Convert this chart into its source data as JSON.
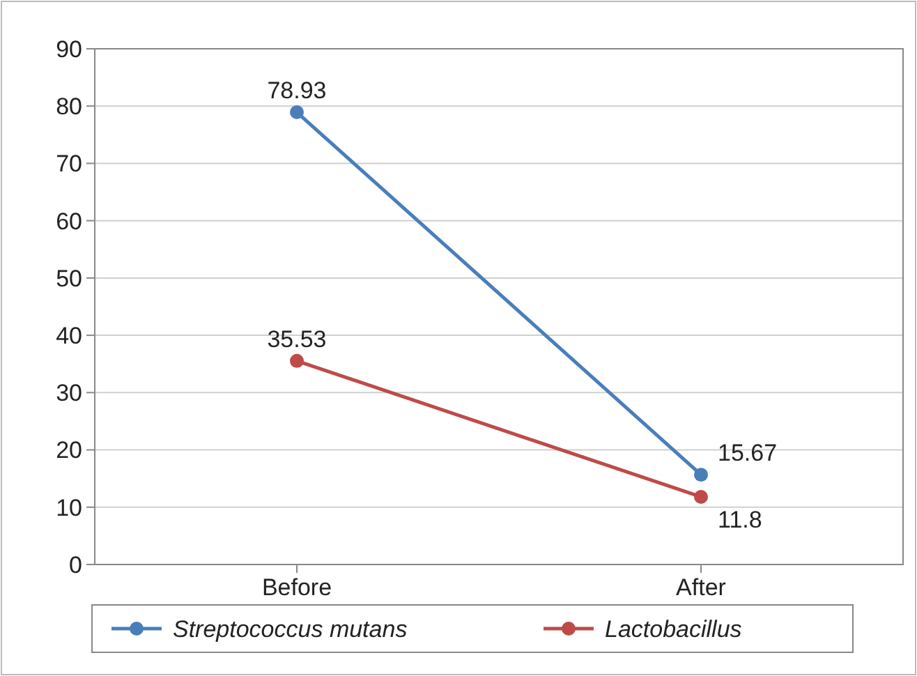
{
  "chart_data": {
    "type": "line",
    "categories": [
      "Before",
      "After"
    ],
    "series": [
      {
        "name": "Streptococcus mutans",
        "color": "#4a7ebb",
        "values": [
          78.93,
          15.67
        ]
      },
      {
        "name": "Lactobacillus",
        "color": "#be4b48",
        "values": [
          35.53,
          11.8
        ]
      }
    ],
    "ylim": [
      0,
      90
    ],
    "yticks": [
      0,
      10,
      20,
      30,
      40,
      50,
      60,
      70,
      80,
      90
    ],
    "grid": "y",
    "legend": "bottom",
    "marker": "circle",
    "line_style": "solid",
    "data_labels": true
  }
}
